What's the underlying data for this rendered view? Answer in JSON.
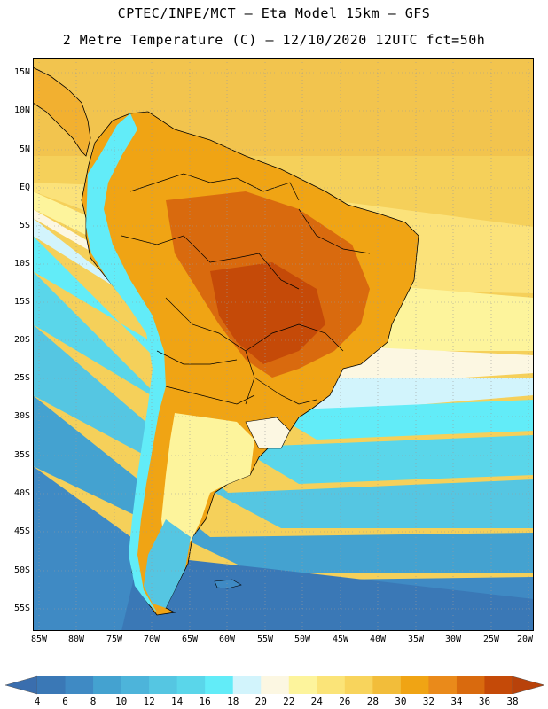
{
  "header": {
    "line1": "CPTEC/INPE/MCT –  Eta Model 15km – GFS",
    "line2": "2 Metre Temperature (C) – 12/10/2020 12UTC fct=50h"
  },
  "map": {
    "lat_labels": [
      "15N",
      "10N",
      "5N",
      "EQ",
      "5S",
      "10S",
      "15S",
      "20S",
      "25S",
      "30S",
      "35S",
      "40S",
      "45S",
      "50S",
      "55S"
    ],
    "lon_labels": [
      "85W",
      "80W",
      "75W",
      "70W",
      "65W",
      "60W",
      "55W",
      "50W",
      "45W",
      "40W",
      "35W",
      "30W",
      "25W",
      "20W"
    ]
  },
  "colorbar": {
    "ticks": [
      "4",
      "6",
      "8",
      "10",
      "12",
      "14",
      "16",
      "18",
      "20",
      "22",
      "24",
      "26",
      "28",
      "30",
      "32",
      "34",
      "36",
      "38"
    ],
    "colors": [
      "#3a78b6",
      "#3f8ac4",
      "#44a2d0",
      "#4db4da",
      "#55c6e2",
      "#5ad6ea",
      "#62ecf8",
      "#d2f4fc",
      "#fcf7e2",
      "#fdf49c",
      "#fbe478",
      "#f8d45c",
      "#f2bd3a",
      "#f0a414",
      "#ea8a1a",
      "#d96a0e",
      "#c54a08"
    ],
    "low_color": "#3a6eae",
    "high_color": "#b8420a"
  }
}
